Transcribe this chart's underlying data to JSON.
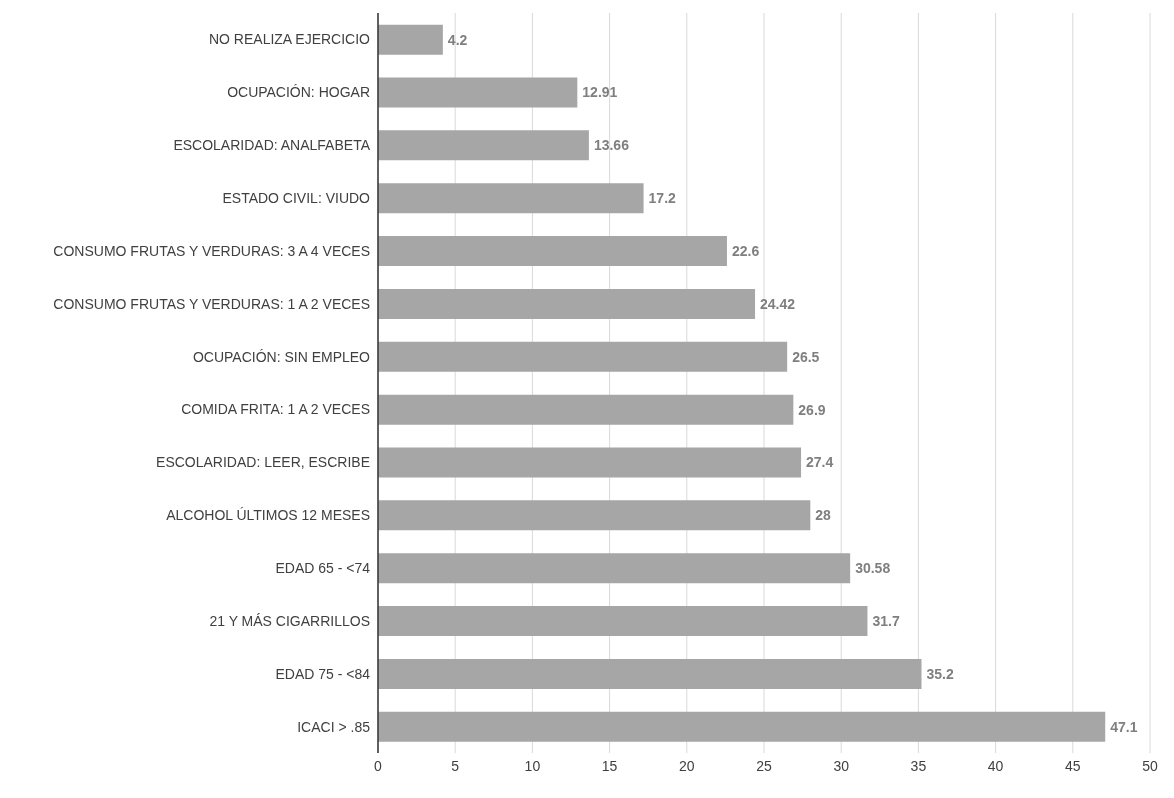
{
  "chart_data": {
    "type": "bar",
    "orientation": "horizontal",
    "categories": [
      "NO REALIZA EJERCICIO",
      "OCUPACIÓN: HOGAR",
      "ESCOLARIDAD: ANALFABETA",
      "ESTADO CIVIL: VIUDO",
      "CONSUMO FRUTAS Y VERDURAS: 3 A 4 VECES",
      "CONSUMO FRUTAS Y VERDURAS: 1 A 2 VECES",
      "OCUPACIÓN: SIN EMPLEO",
      "COMIDA FRITA: 1 A 2 VECES",
      "ESCOLARIDAD: LEER, ESCRIBE",
      "ALCOHOL ÚLTIMOS 12 MESES",
      "EDAD 65 - <74",
      "21 Y MÁS CIGARRILLOS",
      "EDAD 75 - <84",
      "ICACI > .85"
    ],
    "values": [
      4.2,
      12.91,
      13.66,
      17.2,
      22.6,
      24.42,
      26.5,
      26.9,
      27.4,
      28,
      30.58,
      31.7,
      35.2,
      47.1
    ],
    "color": "#a6a6a6",
    "xlim": [
      0,
      50
    ],
    "xticks": [
      0,
      5,
      10,
      15,
      20,
      25,
      30,
      35,
      40,
      45,
      50
    ],
    "grid": "x",
    "data_labels": true,
    "legend": false
  }
}
